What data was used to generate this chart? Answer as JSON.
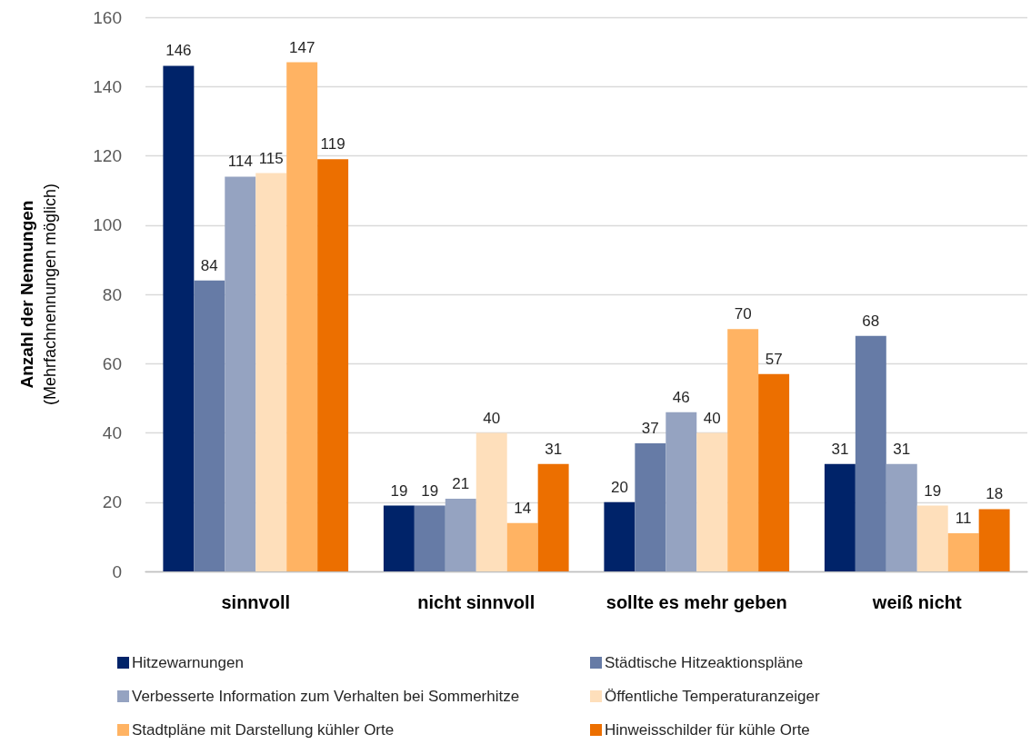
{
  "chart_data": {
    "type": "bar",
    "ylabel": "Anzahl der Nennungen\n(Mehrfachnennungen möglich)",
    "categories": [
      "sinnvoll",
      "nicht sinnvoll",
      "sollte es mehr geben",
      "weiß nicht"
    ],
    "series": [
      {
        "name": "Hitzewarnungen",
        "color": "#002369",
        "values": [
          146,
          19,
          20,
          31
        ]
      },
      {
        "name": "Städtische Hitzeaktionspläne",
        "color": "#667ba6",
        "values": [
          84,
          19,
          37,
          68
        ]
      },
      {
        "name": "Verbesserte Information zum Verhalten bei Sommerhitze",
        "color": "#95a3c1",
        "values": [
          114,
          21,
          46,
          31
        ]
      },
      {
        "name": "Öffentliche Temperaturanzeiger",
        "color": "#fedfbb",
        "values": [
          115,
          40,
          40,
          19
        ]
      },
      {
        "name": "Stadtpläne mit Darstellung kühler Orte",
        "color": "#ffb363",
        "values": [
          147,
          14,
          70,
          11
        ]
      },
      {
        "name": "Hinweisschilder für kühle Orte",
        "color": "#ec6f00",
        "values": [
          119,
          31,
          57,
          18
        ]
      }
    ],
    "ylim": [
      0,
      160
    ],
    "yticks": [
      0,
      20,
      40,
      60,
      80,
      100,
      120,
      140,
      160
    ],
    "grid": "y",
    "legend": "bottom",
    "data_labels": true
  }
}
